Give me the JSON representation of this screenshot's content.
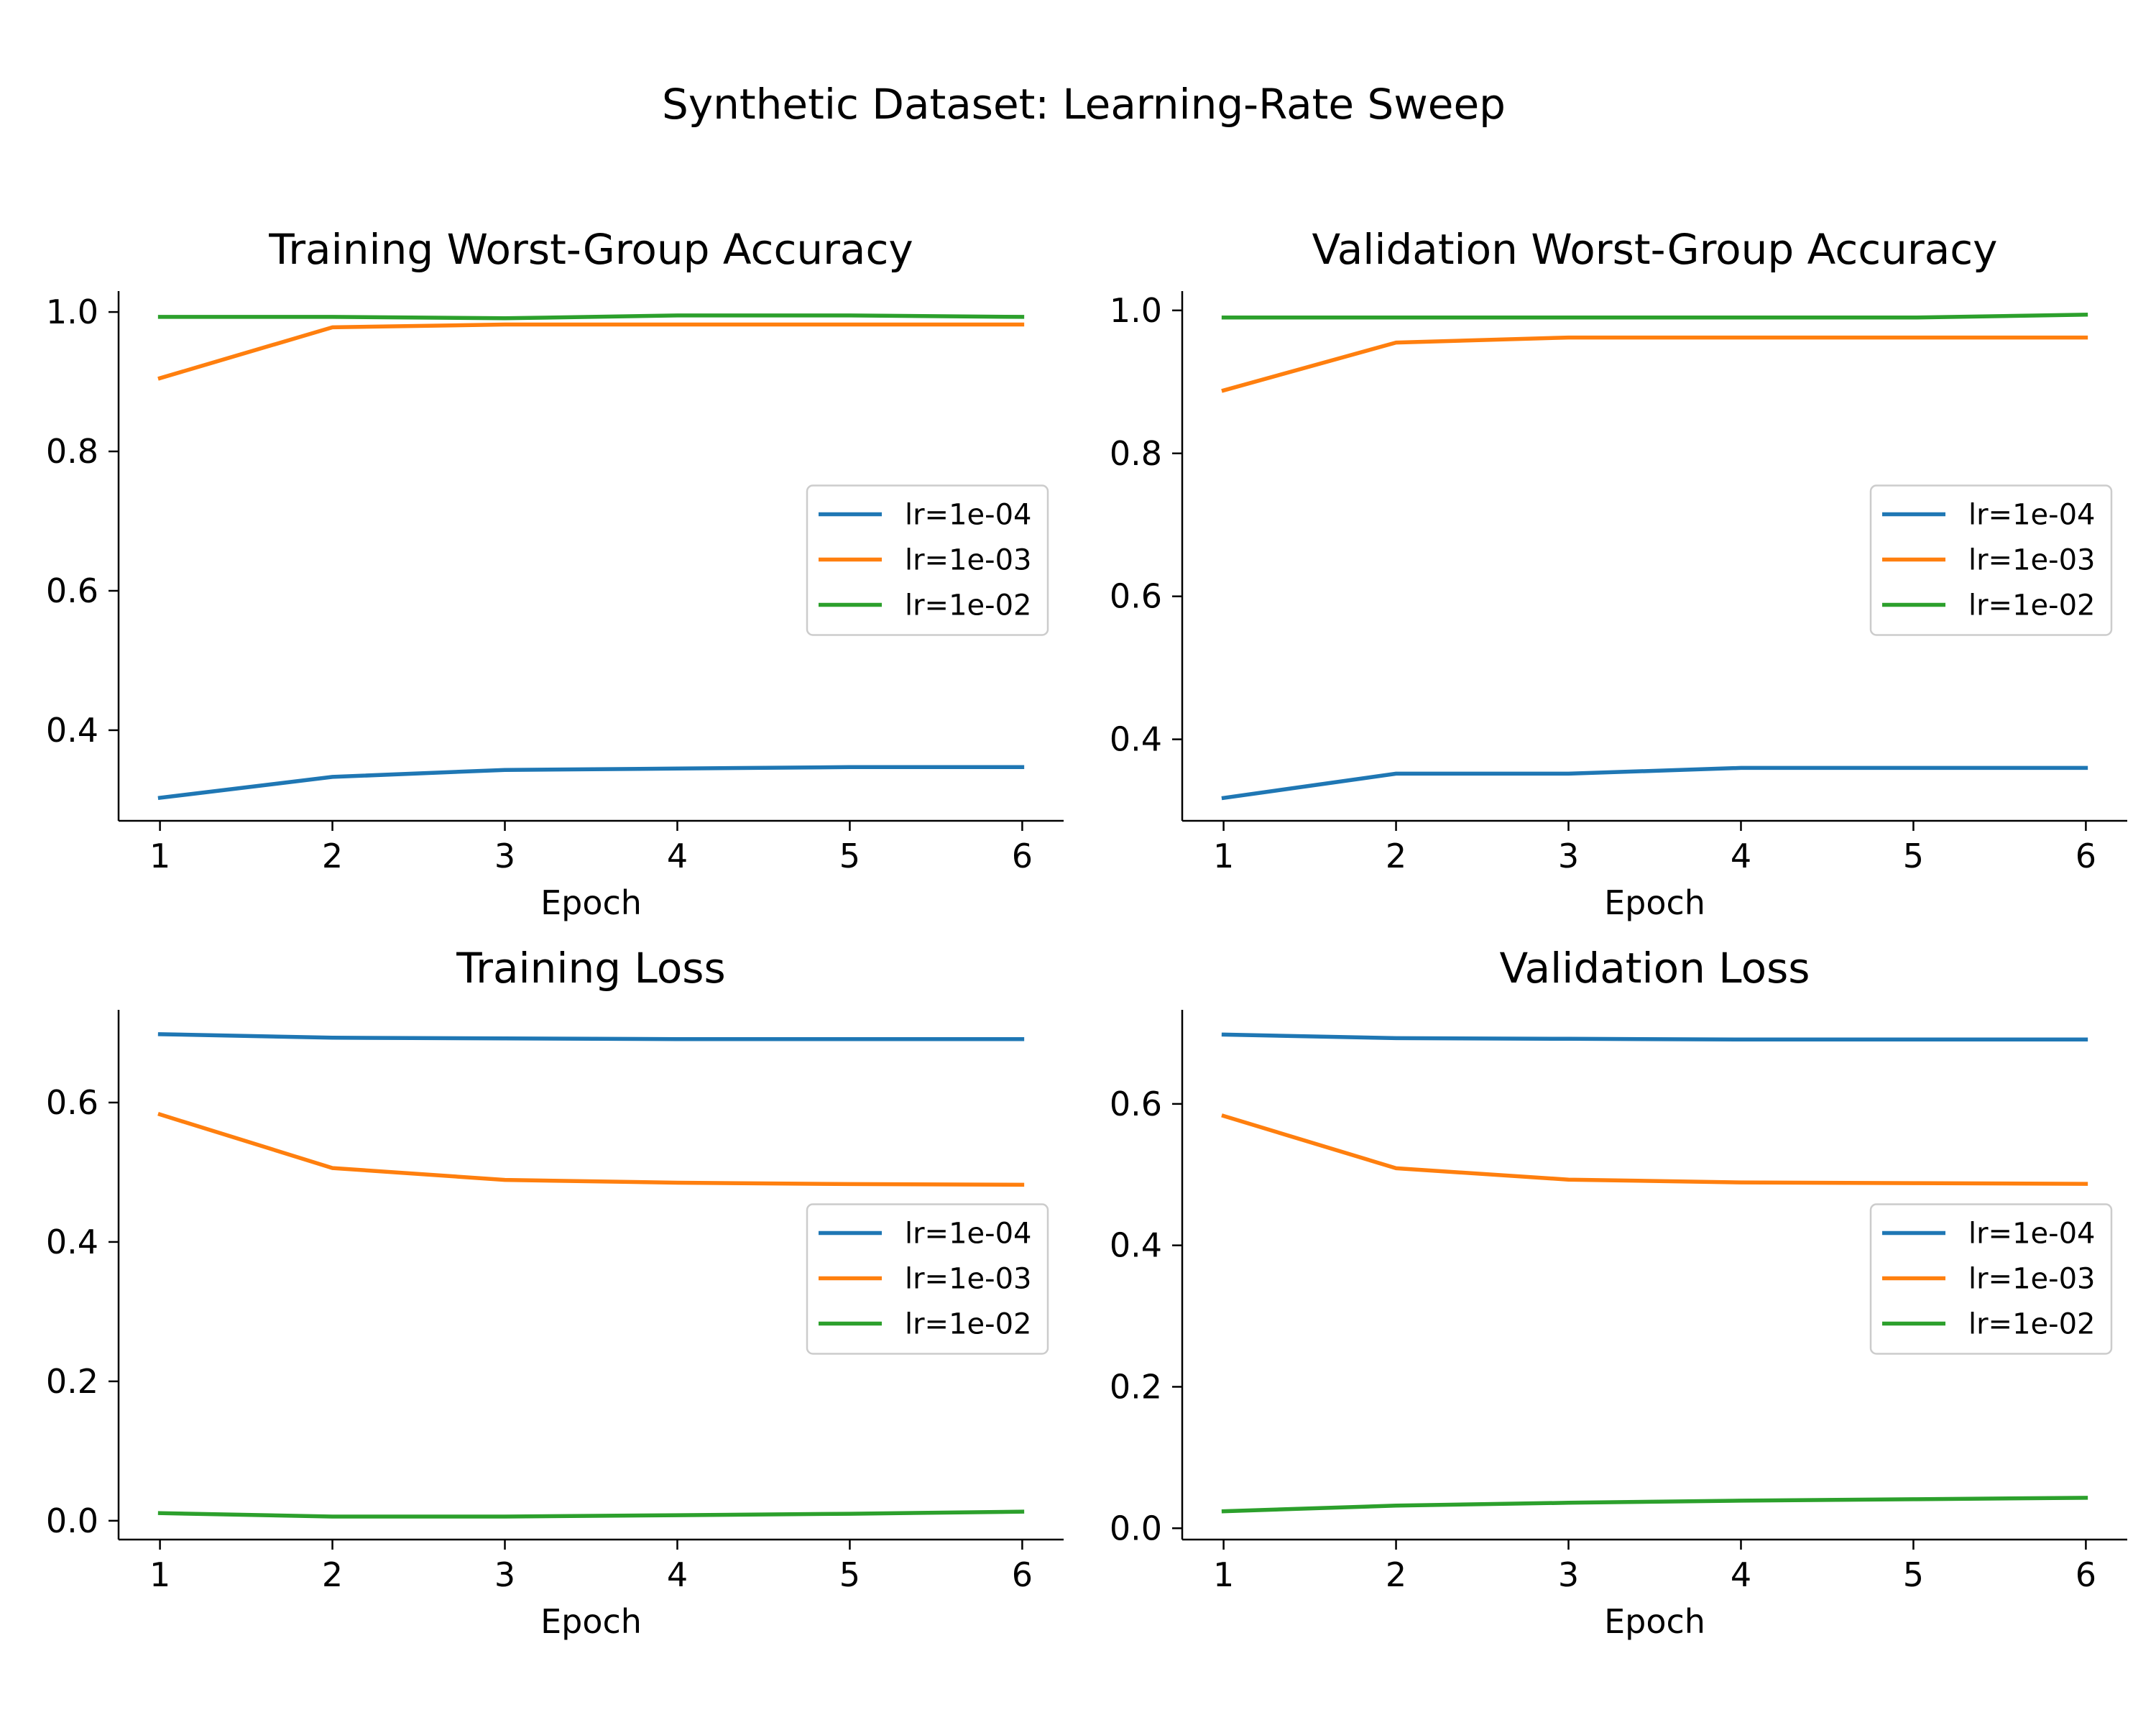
{
  "suptitle": "Synthetic Dataset: Learning-Rate Sweep",
  "colors": {
    "lr=1e-04": "#1f77b4",
    "lr=1e-03": "#ff7f0e",
    "lr=1e-02": "#2ca02c"
  },
  "chart_data": [
    {
      "type": "line",
      "title": "Training Worst-Group Accuracy",
      "xlabel": "Epoch",
      "ylabel": "",
      "x": [
        1,
        2,
        3,
        4,
        5,
        6
      ],
      "xticks": [
        1,
        2,
        3,
        4,
        5,
        6
      ],
      "ylim": [
        0.27,
        1.03
      ],
      "yticks": [
        0.4,
        0.6,
        0.8,
        1.0
      ],
      "grid": false,
      "legend_position": "center-right",
      "series": [
        {
          "name": "lr=1e-04",
          "values": [
            0.303,
            0.333,
            0.343,
            0.345,
            0.347,
            0.347
          ]
        },
        {
          "name": "lr=1e-03",
          "values": [
            0.905,
            0.978,
            0.982,
            0.982,
            0.982,
            0.982
          ]
        },
        {
          "name": "lr=1e-02",
          "values": [
            0.993,
            0.993,
            0.991,
            0.995,
            0.995,
            0.993
          ]
        }
      ]
    },
    {
      "type": "line",
      "title": "Validation Worst-Group Accuracy",
      "xlabel": "Epoch",
      "ylabel": "",
      "x": [
        1,
        2,
        3,
        4,
        5,
        6
      ],
      "xticks": [
        1,
        2,
        3,
        4,
        5,
        6
      ],
      "ylim": [
        0.286,
        1.027
      ],
      "yticks": [
        0.4,
        0.6,
        0.8,
        1.0
      ],
      "grid": false,
      "legend_position": "center-right",
      "series": [
        {
          "name": "lr=1e-04",
          "values": [
            0.318,
            0.352,
            0.352,
            0.36,
            0.36,
            0.36
          ]
        },
        {
          "name": "lr=1e-03",
          "values": [
            0.888,
            0.955,
            0.962,
            0.962,
            0.962,
            0.962
          ]
        },
        {
          "name": "lr=1e-02",
          "values": [
            0.99,
            0.99,
            0.99,
            0.99,
            0.99,
            0.994
          ]
        }
      ]
    },
    {
      "type": "line",
      "title": "Training Loss",
      "xlabel": "Epoch",
      "ylabel": "",
      "x": [
        1,
        2,
        3,
        4,
        5,
        6
      ],
      "xticks": [
        1,
        2,
        3,
        4,
        5,
        6
      ],
      "ylim": [
        -0.027,
        0.733
      ],
      "yticks": [
        0.0,
        0.2,
        0.4,
        0.6
      ],
      "grid": false,
      "legend_position": "center-right",
      "series": [
        {
          "name": "lr=1e-04",
          "values": [
            0.698,
            0.693,
            0.692,
            0.691,
            0.691,
            0.691
          ]
        },
        {
          "name": "lr=1e-03",
          "values": [
            0.583,
            0.506,
            0.489,
            0.485,
            0.483,
            0.482
          ]
        },
        {
          "name": "lr=1e-02",
          "values": [
            0.011,
            0.006,
            0.006,
            0.008,
            0.01,
            0.013
          ]
        }
      ]
    },
    {
      "type": "line",
      "title": "Validation Loss",
      "xlabel": "Epoch",
      "ylabel": "",
      "x": [
        1,
        2,
        3,
        4,
        5,
        6
      ],
      "xticks": [
        1,
        2,
        3,
        4,
        5,
        6
      ],
      "ylim": [
        -0.016,
        0.733
      ],
      "yticks": [
        0.0,
        0.2,
        0.4,
        0.6
      ],
      "grid": false,
      "legend_position": "center-right",
      "series": [
        {
          "name": "lr=1e-04",
          "values": [
            0.698,
            0.693,
            0.692,
            0.691,
            0.691,
            0.691
          ]
        },
        {
          "name": "lr=1e-03",
          "values": [
            0.583,
            0.509,
            0.493,
            0.489,
            0.488,
            0.487
          ]
        },
        {
          "name": "lr=1e-02",
          "values": [
            0.024,
            0.032,
            0.036,
            0.039,
            0.041,
            0.043
          ]
        }
      ]
    }
  ]
}
